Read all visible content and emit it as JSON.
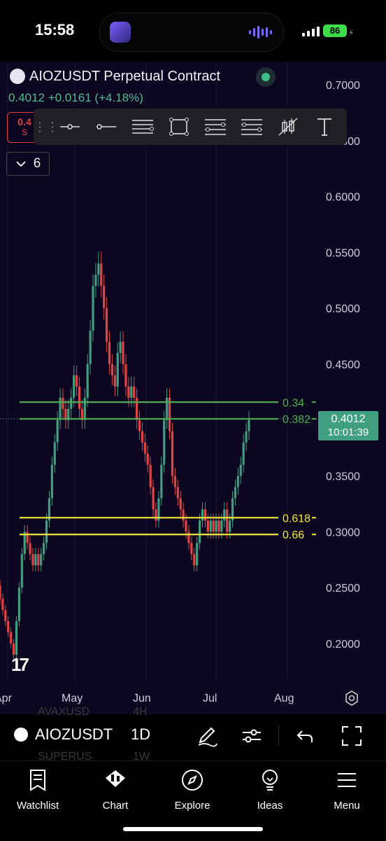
{
  "status_bar": {
    "time": "15:58",
    "battery": "86"
  },
  "header": {
    "title": "AIOZUSDT Perpetual Contract",
    "last_price": "0.4012",
    "change": "+0.0161",
    "change_pct": "(+4.18%)",
    "sell_price_partial": "0.4",
    "sell_label_partial": "S"
  },
  "drawings_toolbar": {
    "tools": [
      "horizontal-ray-icon",
      "trend-line-icon",
      "parallel-channel-icon",
      "rectangle-icon",
      "fib-retracement-icon",
      "fib-extension-icon",
      "long-position-icon",
      "text-icon"
    ]
  },
  "collapse_button": {
    "count": "6"
  },
  "chart_data": {
    "type": "candlestick",
    "symbol": "AIOZUSDT",
    "interval": "1D",
    "y_ticks": [
      "0.7000",
      "0.6500",
      "0.6000",
      "0.5500",
      "0.5000",
      "0.4500",
      "0.4000",
      "0.3500",
      "0.3000",
      "0.2500",
      "0.2000"
    ],
    "x_ticks": [
      "Apr",
      "May",
      "Jun",
      "Jul",
      "Aug"
    ],
    "ylim": [
      0.18,
      0.72
    ],
    "current_price": "0.4012",
    "countdown": "10:01:39",
    "fib_levels": [
      {
        "label": "0.34",
        "value": 0.416,
        "color": "#4caf50"
      },
      {
        "label": "0.382",
        "value": 0.401,
        "color": "#4caf50"
      },
      {
        "label": "0.618",
        "value": 0.3126,
        "color": "#f5eb3b"
      },
      {
        "label": "0.66",
        "value": 0.2976,
        "color": "#f5eb3b"
      }
    ],
    "closes": [
      0.24,
      0.23,
      0.22,
      0.21,
      0.2,
      0.19,
      0.22,
      0.25,
      0.28,
      0.3,
      0.29,
      0.28,
      0.27,
      0.28,
      0.27,
      0.28,
      0.29,
      0.31,
      0.33,
      0.36,
      0.38,
      0.4,
      0.42,
      0.41,
      0.4,
      0.41,
      0.42,
      0.44,
      0.43,
      0.41,
      0.4,
      0.42,
      0.45,
      0.48,
      0.52,
      0.53,
      0.54,
      0.52,
      0.5,
      0.47,
      0.45,
      0.44,
      0.43,
      0.46,
      0.47,
      0.45,
      0.43,
      0.42,
      0.43,
      0.42,
      0.4,
      0.39,
      0.38,
      0.37,
      0.36,
      0.34,
      0.32,
      0.31,
      0.33,
      0.36,
      0.4,
      0.42,
      0.39,
      0.35,
      0.34,
      0.33,
      0.32,
      0.31,
      0.3,
      0.29,
      0.28,
      0.27,
      0.29,
      0.31,
      0.32,
      0.31,
      0.3,
      0.31,
      0.3,
      0.31,
      0.3,
      0.31,
      0.32,
      0.3,
      0.31,
      0.33,
      0.34,
      0.35,
      0.36,
      0.38,
      0.39,
      0.4
    ]
  },
  "bottom_toolbar": {
    "symbol": "AIOZUSDT",
    "interval": "1D",
    "ghost_symbol_above": "AVAXUSD",
    "ghost_interval_above": "4H",
    "ghost_symbol_below": "SUPERUS",
    "ghost_interval_below": "1W"
  },
  "nav": {
    "items": [
      {
        "label": "Watchlist",
        "icon": "watchlist-icon"
      },
      {
        "label": "Chart",
        "icon": "chart-icon"
      },
      {
        "label": "Explore",
        "icon": "compass-icon"
      },
      {
        "label": "Ideas",
        "icon": "lightbulb-icon"
      },
      {
        "label": "Menu",
        "icon": "hamburger-icon"
      }
    ]
  },
  "colors": {
    "bg": "#0c0620",
    "up": "#3f9f80",
    "down": "#e04545",
    "fib_green": "#4caf50",
    "fib_yellow": "#f5eb3b"
  }
}
